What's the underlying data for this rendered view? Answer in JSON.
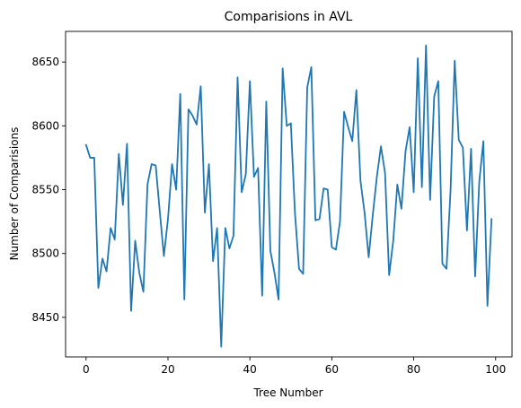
{
  "chart_data": {
    "type": "line",
    "title": "Comparisions in AVL",
    "xlabel": "Tree Number",
    "ylabel": "Number of Comparisions",
    "xlim": [
      -5,
      104
    ],
    "ylim": [
      8419,
      8674
    ],
    "xticks": [
      0,
      20,
      40,
      60,
      80,
      100
    ],
    "yticks": [
      8450,
      8500,
      8550,
      8600,
      8650
    ],
    "grid": false,
    "series": [
      {
        "color": "#1f77b4",
        "x": [
          0,
          1,
          2,
          3,
          4,
          5,
          6,
          7,
          8,
          9,
          10,
          11,
          12,
          13,
          14,
          15,
          16,
          17,
          18,
          19,
          20,
          21,
          22,
          23,
          24,
          25,
          26,
          27,
          28,
          29,
          30,
          31,
          32,
          33,
          34,
          35,
          36,
          37,
          38,
          39,
          40,
          41,
          42,
          43,
          44,
          45,
          46,
          47,
          48,
          49,
          50,
          51,
          52,
          53,
          54,
          55,
          56,
          57,
          58,
          59,
          60,
          61,
          62,
          63,
          64,
          65,
          66,
          67,
          68,
          69,
          70,
          71,
          72,
          73,
          74,
          75,
          76,
          77,
          78,
          79,
          80,
          81,
          82,
          83,
          84,
          85,
          86,
          87,
          88,
          89,
          90,
          91,
          92,
          93,
          94,
          95,
          96,
          97,
          98,
          99
        ],
        "y": [
          8585,
          8575,
          8575,
          8473,
          8496,
          8486,
          8520,
          8511,
          8578,
          8538,
          8586,
          8455,
          8510,
          8485,
          8470,
          8554,
          8570,
          8569,
          8533,
          8498,
          8527,
          8570,
          8550,
          8625,
          8464,
          8613,
          8608,
          8601,
          8631,
          8532,
          8570,
          8494,
          8520,
          8427,
          8520,
          8504,
          8514,
          8638,
          8548,
          8562,
          8635,
          8560,
          8567,
          8467,
          8619,
          8502,
          8485,
          8464,
          8645,
          8600,
          8602,
          8532,
          8488,
          8484,
          8630,
          8646,
          8526,
          8527,
          8551,
          8550,
          8505,
          8503,
          8525,
          8611,
          8599,
          8588,
          8628,
          8557,
          8532,
          8497,
          8530,
          8560,
          8584,
          8563,
          8483,
          8510,
          8554,
          8535,
          8580,
          8599,
          8548,
          8653,
          8552,
          8663,
          8542,
          8623,
          8635,
          8492,
          8488,
          8550,
          8651,
          8589,
          8583,
          8518,
          8582,
          8482,
          8556,
          8588,
          8459,
          8527
        ]
      }
    ]
  }
}
